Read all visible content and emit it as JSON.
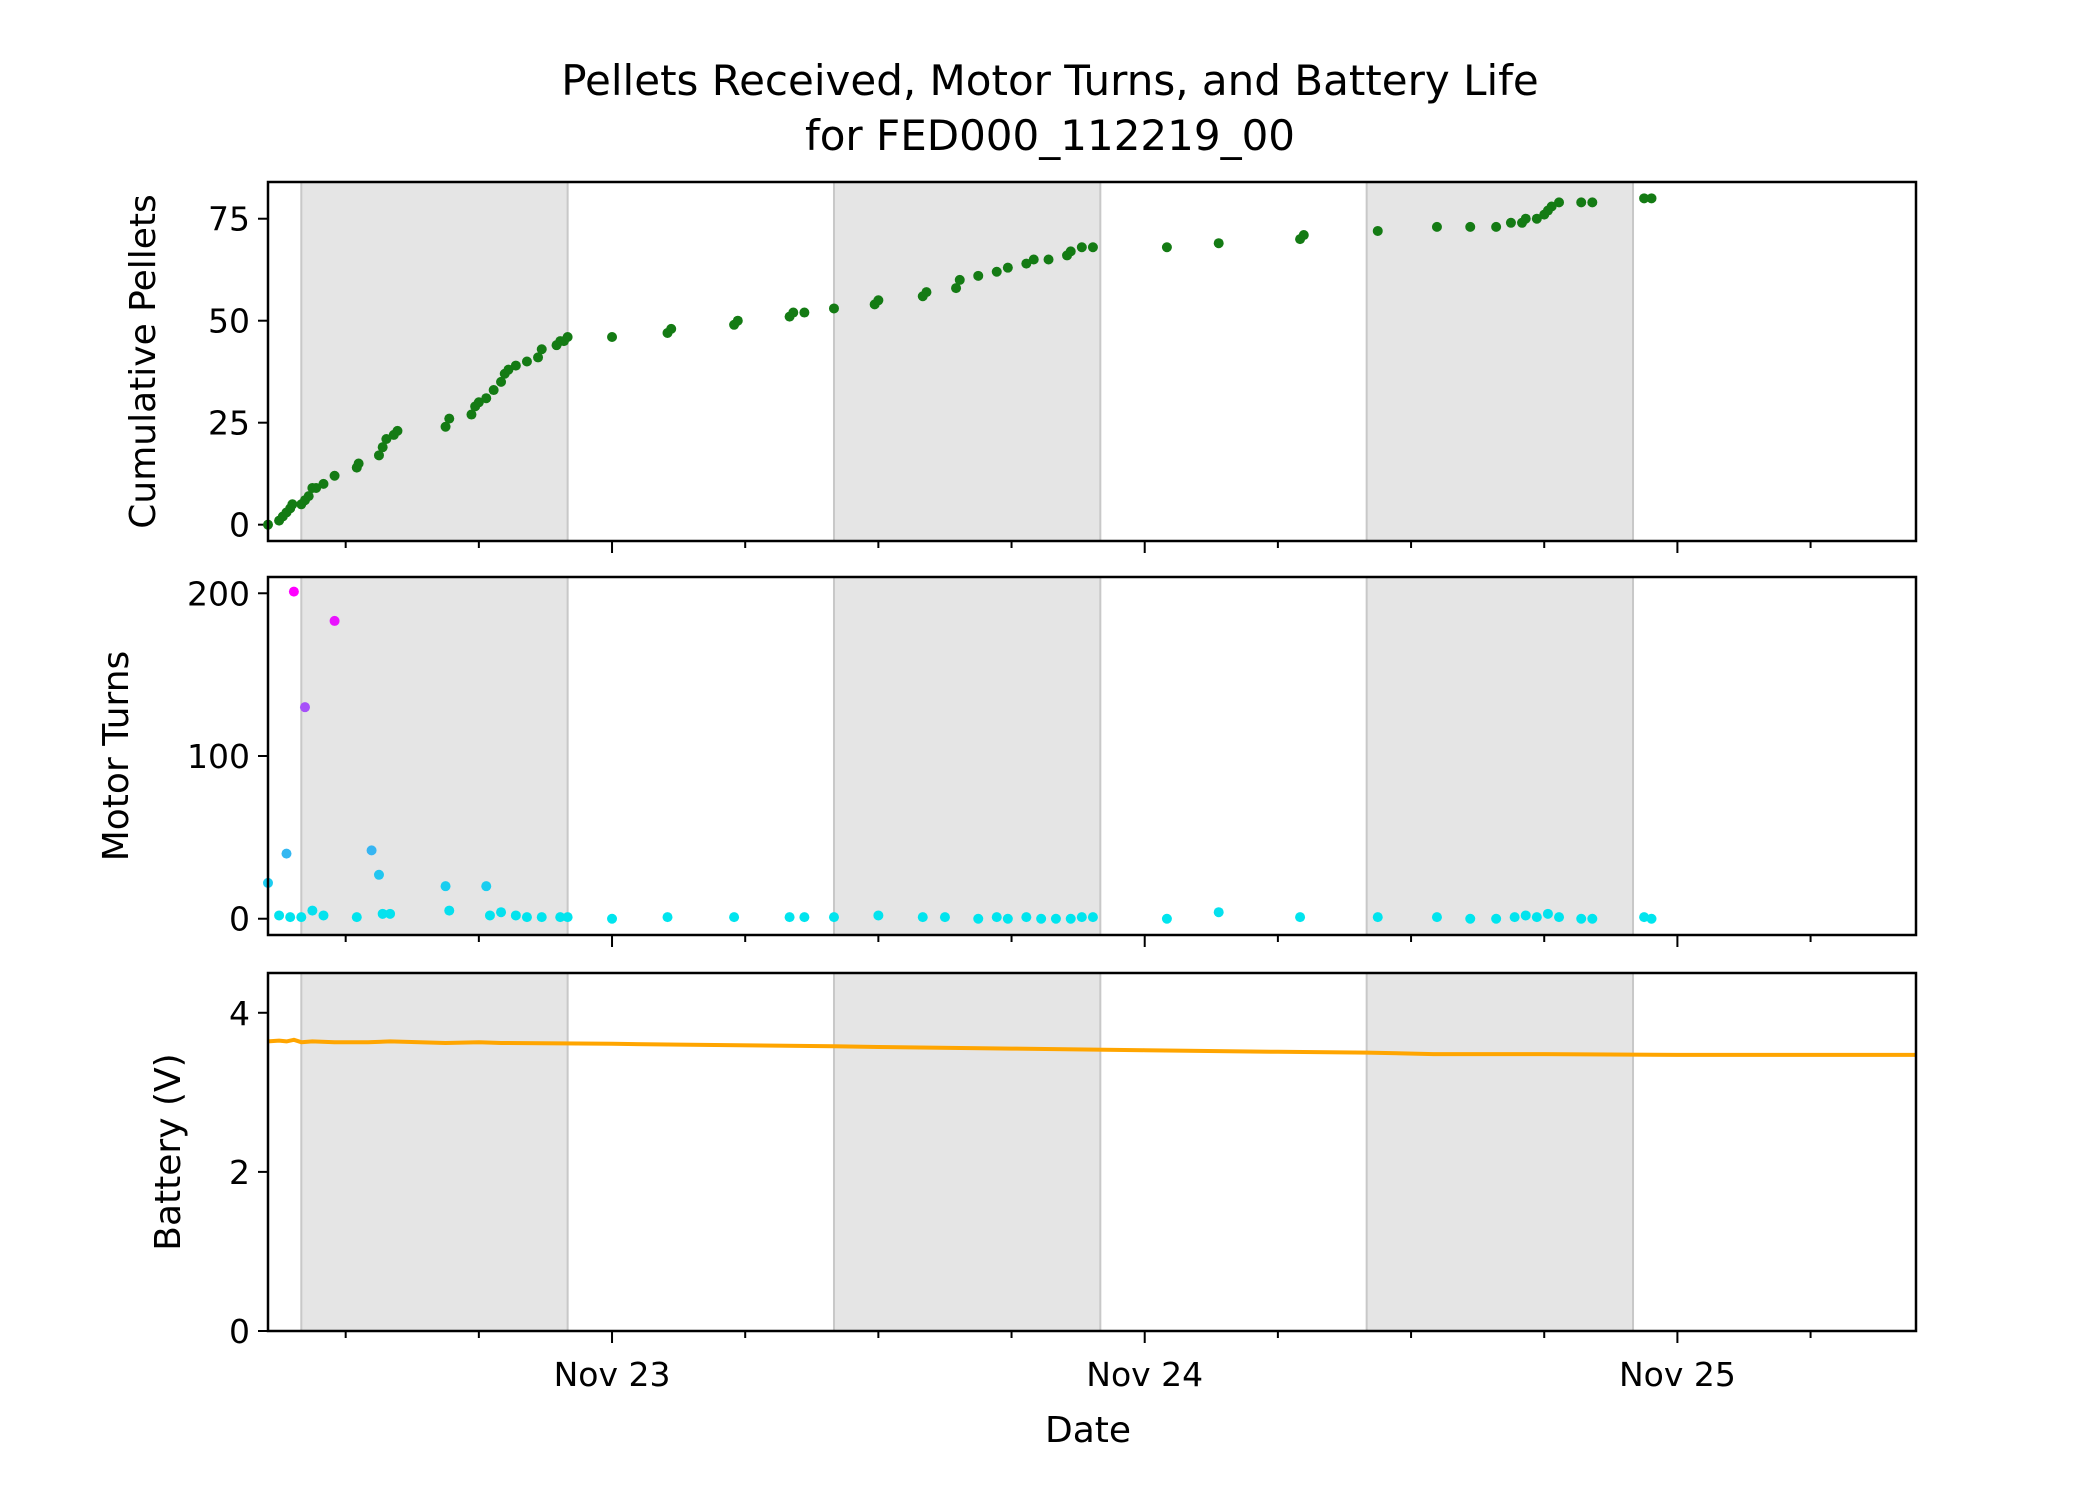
{
  "title_line1": "Pellets Received, Motor Turns, and Battery Life",
  "title_line2": "for FED000_112219_00",
  "colors": {
    "pellets": "#147b14",
    "motor_low": "#00e5ee",
    "motor_high": "#ff00ff",
    "battery": "#ffa500",
    "night": "#e5e5e5",
    "night_edge": "#c8c8c8"
  },
  "chart_data": [
    {
      "type": "scatter",
      "ylabel": "Cumulative Pellets",
      "xlabel": "",
      "xlim": [
        "2019-11-22 08:30",
        "2019-11-25 10:45"
      ],
      "ylim": [
        -4,
        84
      ],
      "yticks": [
        0,
        25,
        50,
        75
      ],
      "night_periods": [
        [
          "2019-11-22 10:00",
          "2019-11-22 22:00"
        ],
        [
          "2019-11-23 10:00",
          "2019-11-23 22:00"
        ],
        [
          "2019-11-24 10:00",
          "2019-11-24 22:00"
        ]
      ],
      "series": [
        {
          "color": "#147b14",
          "points": [
            [
              "2019-11-22 08:30",
              0
            ],
            [
              "2019-11-22 09:00",
              1
            ],
            [
              "2019-11-22 09:10",
              2
            ],
            [
              "2019-11-22 09:20",
              3
            ],
            [
              "2019-11-22 09:30",
              4
            ],
            [
              "2019-11-22 09:36",
              5
            ],
            [
              "2019-11-22 10:00",
              5
            ],
            [
              "2019-11-22 10:10",
              6
            ],
            [
              "2019-11-22 10:20",
              7
            ],
            [
              "2019-11-22 10:30",
              9
            ],
            [
              "2019-11-22 10:40",
              9
            ],
            [
              "2019-11-22 11:00",
              10
            ],
            [
              "2019-11-22 11:30",
              12
            ],
            [
              "2019-11-22 12:30",
              14
            ],
            [
              "2019-11-22 12:35",
              15
            ],
            [
              "2019-11-22 13:30",
              17
            ],
            [
              "2019-11-22 13:40",
              19
            ],
            [
              "2019-11-22 13:50",
              21
            ],
            [
              "2019-11-22 14:10",
              22
            ],
            [
              "2019-11-22 14:20",
              23
            ],
            [
              "2019-11-22 16:30",
              24
            ],
            [
              "2019-11-22 16:40",
              26
            ],
            [
              "2019-11-22 17:40",
              27
            ],
            [
              "2019-11-22 17:50",
              29
            ],
            [
              "2019-11-22 18:00",
              30
            ],
            [
              "2019-11-22 18:20",
              31
            ],
            [
              "2019-11-22 18:40",
              33
            ],
            [
              "2019-11-22 19:00",
              35
            ],
            [
              "2019-11-22 19:10",
              37
            ],
            [
              "2019-11-22 19:20",
              38
            ],
            [
              "2019-11-22 19:40",
              39
            ],
            [
              "2019-11-22 20:10",
              40
            ],
            [
              "2019-11-22 20:40",
              41
            ],
            [
              "2019-11-22 20:50",
              43
            ],
            [
              "2019-11-22 21:30",
              44
            ],
            [
              "2019-11-22 21:40",
              45
            ],
            [
              "2019-11-22 21:50",
              45
            ],
            [
              "2019-11-22 22:00",
              46
            ],
            [
              "2019-11-23 00:00",
              46
            ],
            [
              "2019-11-23 02:30",
              47
            ],
            [
              "2019-11-23 02:40",
              48
            ],
            [
              "2019-11-23 05:30",
              49
            ],
            [
              "2019-11-23 05:40",
              50
            ],
            [
              "2019-11-23 08:00",
              51
            ],
            [
              "2019-11-23 08:10",
              52
            ],
            [
              "2019-11-23 08:40",
              52
            ],
            [
              "2019-11-23 10:00",
              53
            ],
            [
              "2019-11-23 11:50",
              54
            ],
            [
              "2019-11-23 12:00",
              55
            ],
            [
              "2019-11-23 14:00",
              56
            ],
            [
              "2019-11-23 14:10",
              57
            ],
            [
              "2019-11-23 15:30",
              58
            ],
            [
              "2019-11-23 15:40",
              60
            ],
            [
              "2019-11-23 16:30",
              61
            ],
            [
              "2019-11-23 17:20",
              62
            ],
            [
              "2019-11-23 17:50",
              63
            ],
            [
              "2019-11-23 18:40",
              64
            ],
            [
              "2019-11-23 19:00",
              65
            ],
            [
              "2019-11-23 19:40",
              65
            ],
            [
              "2019-11-23 20:30",
              66
            ],
            [
              "2019-11-23 20:40",
              67
            ],
            [
              "2019-11-23 21:10",
              68
            ],
            [
              "2019-11-23 21:40",
              68
            ],
            [
              "2019-11-24 01:00",
              68
            ],
            [
              "2019-11-24 03:20",
              69
            ],
            [
              "2019-11-24 07:00",
              70
            ],
            [
              "2019-11-24 07:10",
              71
            ],
            [
              "2019-11-24 10:30",
              72
            ],
            [
              "2019-11-24 13:10",
              73
            ],
            [
              "2019-11-24 14:40",
              73
            ],
            [
              "2019-11-24 15:50",
              73
            ],
            [
              "2019-11-24 16:30",
              74
            ],
            [
              "2019-11-24 17:00",
              74
            ],
            [
              "2019-11-24 17:10",
              75
            ],
            [
              "2019-11-24 17:40",
              75
            ],
            [
              "2019-11-24 18:00",
              76
            ],
            [
              "2019-11-24 18:10",
              77
            ],
            [
              "2019-11-24 18:20",
              78
            ],
            [
              "2019-11-24 18:40",
              79
            ],
            [
              "2019-11-24 19:40",
              79
            ],
            [
              "2019-11-24 20:10",
              79
            ],
            [
              "2019-11-24 22:30",
              80
            ],
            [
              "2019-11-24 22:50",
              80
            ]
          ]
        }
      ]
    },
    {
      "type": "scatter",
      "ylabel": "Motor Turns",
      "xlabel": "",
      "xlim": [
        "2019-11-22 08:30",
        "2019-11-25 10:45"
      ],
      "ylim": [
        -10,
        210
      ],
      "yticks": [
        0,
        100,
        200
      ],
      "night_periods": [
        [
          "2019-11-22 10:00",
          "2019-11-22 22:00"
        ],
        [
          "2019-11-23 10:00",
          "2019-11-23 22:00"
        ],
        [
          "2019-11-24 10:00",
          "2019-11-24 22:00"
        ]
      ],
      "series": [
        {
          "points": [
            [
              "2019-11-22 08:30",
              22
            ],
            [
              "2019-11-22 09:00",
              2
            ],
            [
              "2019-11-22 09:20",
              40
            ],
            [
              "2019-11-22 09:30",
              1
            ],
            [
              "2019-11-22 09:40",
              201
            ],
            [
              "2019-11-22 10:00",
              1
            ],
            [
              "2019-11-22 10:10",
              130
            ],
            [
              "2019-11-22 10:30",
              5
            ],
            [
              "2019-11-22 11:00",
              2
            ],
            [
              "2019-11-22 11:30",
              183
            ],
            [
              "2019-11-22 12:30",
              1
            ],
            [
              "2019-11-22 13:10",
              42
            ],
            [
              "2019-11-22 13:30",
              27
            ],
            [
              "2019-11-22 13:40",
              3
            ],
            [
              "2019-11-22 14:00",
              3
            ],
            [
              "2019-11-22 16:30",
              20
            ],
            [
              "2019-11-22 16:40",
              5
            ],
            [
              "2019-11-22 18:20",
              20
            ],
            [
              "2019-11-22 18:30",
              2
            ],
            [
              "2019-11-22 19:00",
              4
            ],
            [
              "2019-11-22 19:40",
              2
            ],
            [
              "2019-11-22 20:10",
              1
            ],
            [
              "2019-11-22 20:50",
              1
            ],
            [
              "2019-11-22 21:40",
              1
            ],
            [
              "2019-11-22 22:00",
              1
            ],
            [
              "2019-11-23 00:00",
              0
            ],
            [
              "2019-11-23 02:30",
              1
            ],
            [
              "2019-11-23 05:30",
              1
            ],
            [
              "2019-11-23 08:00",
              1
            ],
            [
              "2019-11-23 08:40",
              1
            ],
            [
              "2019-11-23 10:00",
              1
            ],
            [
              "2019-11-23 12:00",
              2
            ],
            [
              "2019-11-23 14:00",
              1
            ],
            [
              "2019-11-23 15:00",
              1
            ],
            [
              "2019-11-23 16:30",
              0
            ],
            [
              "2019-11-23 17:20",
              1
            ],
            [
              "2019-11-23 17:50",
              0
            ],
            [
              "2019-11-23 18:40",
              1
            ],
            [
              "2019-11-23 19:20",
              0
            ],
            [
              "2019-11-23 20:00",
              0
            ],
            [
              "2019-11-23 20:40",
              0
            ],
            [
              "2019-11-23 21:10",
              1
            ],
            [
              "2019-11-23 21:40",
              1
            ],
            [
              "2019-11-24 01:00",
              0
            ],
            [
              "2019-11-24 03:20",
              4
            ],
            [
              "2019-11-24 07:00",
              1
            ],
            [
              "2019-11-24 10:30",
              1
            ],
            [
              "2019-11-24 13:10",
              1
            ],
            [
              "2019-11-24 14:40",
              0
            ],
            [
              "2019-11-24 15:50",
              0
            ],
            [
              "2019-11-24 16:40",
              1
            ],
            [
              "2019-11-24 17:10",
              2
            ],
            [
              "2019-11-24 17:40",
              1
            ],
            [
              "2019-11-24 18:10",
              3
            ],
            [
              "2019-11-24 18:40",
              1
            ],
            [
              "2019-11-24 19:40",
              0
            ],
            [
              "2019-11-24 20:10",
              0
            ],
            [
              "2019-11-24 22:30",
              1
            ],
            [
              "2019-11-24 22:50",
              0
            ]
          ]
        }
      ]
    },
    {
      "type": "line",
      "ylabel": "Battery (V)",
      "xlabel": "Date",
      "xlim": [
        "2019-11-22 08:30",
        "2019-11-25 10:45"
      ],
      "ylim": [
        0,
        4.5
      ],
      "yticks": [
        0,
        2,
        4
      ],
      "xticks": [
        {
          "label": "Nov 23",
          "date": "2019-11-23 00:00"
        },
        {
          "label": "Nov 24",
          "date": "2019-11-24 00:00"
        },
        {
          "label": "Nov 25",
          "date": "2019-11-25 00:00"
        }
      ],
      "night_periods": [
        [
          "2019-11-22 10:00",
          "2019-11-22 22:00"
        ],
        [
          "2019-11-23 10:00",
          "2019-11-23 22:00"
        ],
        [
          "2019-11-24 10:00",
          "2019-11-24 22:00"
        ]
      ],
      "series": [
        {
          "color": "#ffa500",
          "points": [
            [
              "2019-11-22 08:30",
              3.64
            ],
            [
              "2019-11-22 09:00",
              3.65
            ],
            [
              "2019-11-22 09:20",
              3.64
            ],
            [
              "2019-11-22 09:40",
              3.66
            ],
            [
              "2019-11-22 10:00",
              3.63
            ],
            [
              "2019-11-22 10:30",
              3.64
            ],
            [
              "2019-11-22 11:30",
              3.63
            ],
            [
              "2019-11-22 13:00",
              3.63
            ],
            [
              "2019-11-22 14:00",
              3.64
            ],
            [
              "2019-11-22 16:30",
              3.62
            ],
            [
              "2019-11-22 18:00",
              3.63
            ],
            [
              "2019-11-22 19:00",
              3.62
            ],
            [
              "2019-11-23 00:00",
              3.61
            ],
            [
              "2019-11-23 03:00",
              3.6
            ],
            [
              "2019-11-23 10:00",
              3.58
            ],
            [
              "2019-11-23 12:00",
              3.57
            ],
            [
              "2019-11-23 18:00",
              3.55
            ],
            [
              "2019-11-24 00:00",
              3.53
            ],
            [
              "2019-11-24 06:00",
              3.51
            ],
            [
              "2019-11-24 10:00",
              3.5
            ],
            [
              "2019-11-24 13:00",
              3.48
            ],
            [
              "2019-11-24 18:00",
              3.48
            ],
            [
              "2019-11-25 00:00",
              3.47
            ],
            [
              "2019-11-25 10:45",
              3.47
            ]
          ]
        }
      ]
    }
  ]
}
